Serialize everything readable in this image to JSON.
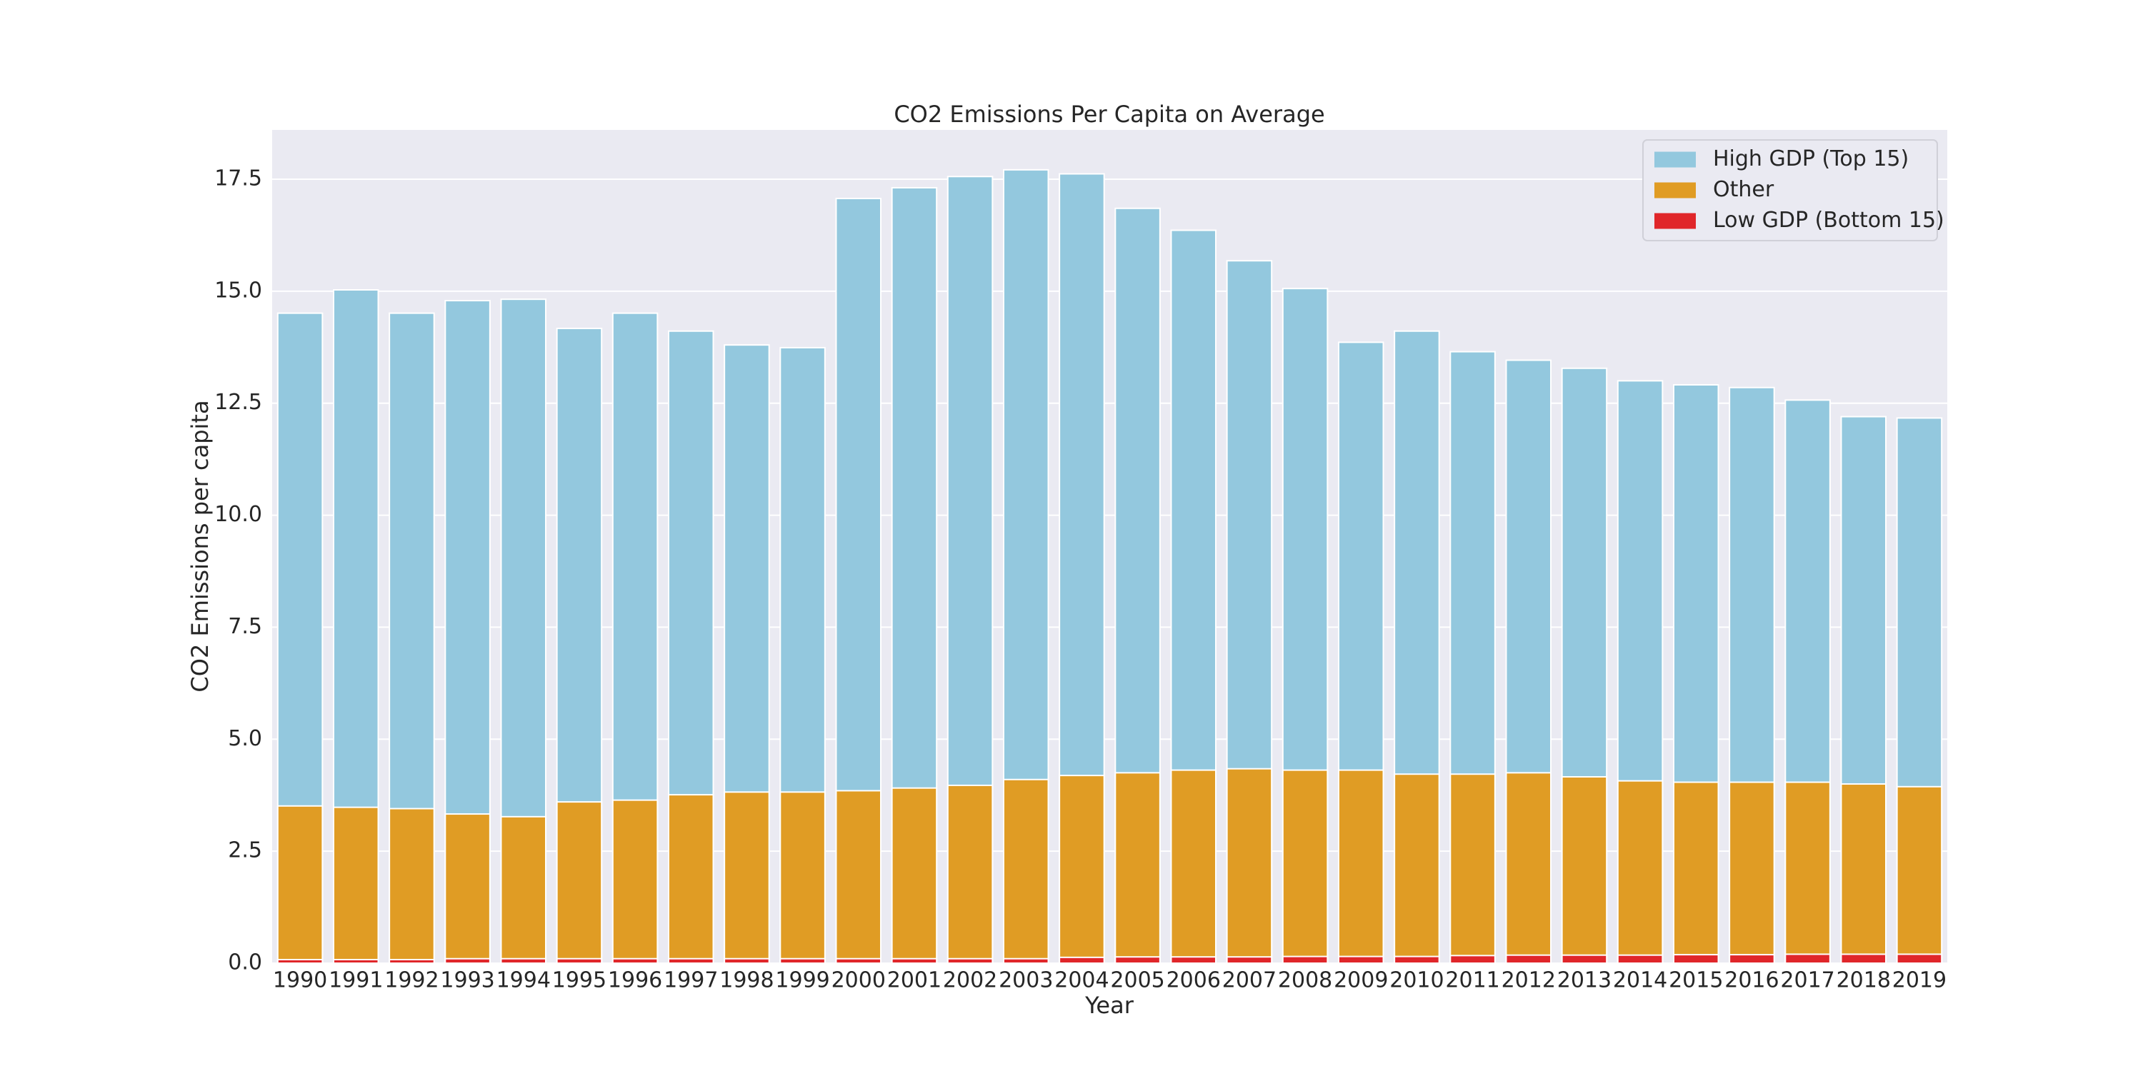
{
  "chart_data": {
    "type": "bar",
    "overlay": true,
    "title": "CO2 Emissions Per Capita on Average",
    "x_label": "Year",
    "y_label": "CO2 Emissions per capita",
    "categories": [
      "1990",
      "1991",
      "1992",
      "1993",
      "1994",
      "1995",
      "1996",
      "1997",
      "1998",
      "1999",
      "2000",
      "2001",
      "2002",
      "2003",
      "2004",
      "2005",
      "2006",
      "2007",
      "2008",
      "2009",
      "2010",
      "2011",
      "2012",
      "2013",
      "2014",
      "2015",
      "2016",
      "2017",
      "2018",
      "2019"
    ],
    "series": [
      {
        "name": "High GDP (Top 15)",
        "color": "#93c8de",
        "values": [
          14.51,
          15.03,
          14.51,
          14.79,
          14.82,
          14.17,
          14.51,
          14.11,
          13.8,
          13.74,
          17.07,
          17.31,
          17.56,
          17.71,
          17.62,
          16.85,
          16.36,
          15.68,
          15.06,
          13.86,
          14.11,
          13.65,
          13.46,
          13.28,
          13.0,
          12.91,
          12.85,
          12.57,
          12.2,
          12.17
        ]
      },
      {
        "name": "Other",
        "color": "#e09c24",
        "values": [
          3.51,
          3.48,
          3.45,
          3.33,
          3.27,
          3.6,
          3.64,
          3.76,
          3.82,
          3.82,
          3.85,
          3.91,
          3.97,
          4.1,
          4.19,
          4.25,
          4.31,
          4.34,
          4.31,
          4.31,
          4.22,
          4.22,
          4.25,
          4.16,
          4.07,
          4.04,
          4.04,
          4.04,
          4.0,
          3.94
        ]
      },
      {
        "name": "Low GDP (Bottom 15)",
        "color": "#e0262a",
        "values": [
          0.08,
          0.08,
          0.08,
          0.1,
          0.1,
          0.1,
          0.1,
          0.1,
          0.1,
          0.1,
          0.1,
          0.1,
          0.1,
          0.1,
          0.13,
          0.14,
          0.14,
          0.14,
          0.15,
          0.15,
          0.15,
          0.17,
          0.18,
          0.18,
          0.18,
          0.19,
          0.19,
          0.2,
          0.2,
          0.2
        ]
      }
    ],
    "ylim": [
      0,
      18.6
    ],
    "yticks": [
      {
        "value": 0,
        "label": "0.0"
      },
      2.5,
      {
        "value": 5,
        "label": "5.0"
      },
      7.5,
      {
        "value": 10,
        "label": "10.0"
      },
      12.5,
      {
        "value": 15,
        "label": "15.0"
      },
      17.5
    ],
    "grid": true,
    "legend": "upper right"
  }
}
